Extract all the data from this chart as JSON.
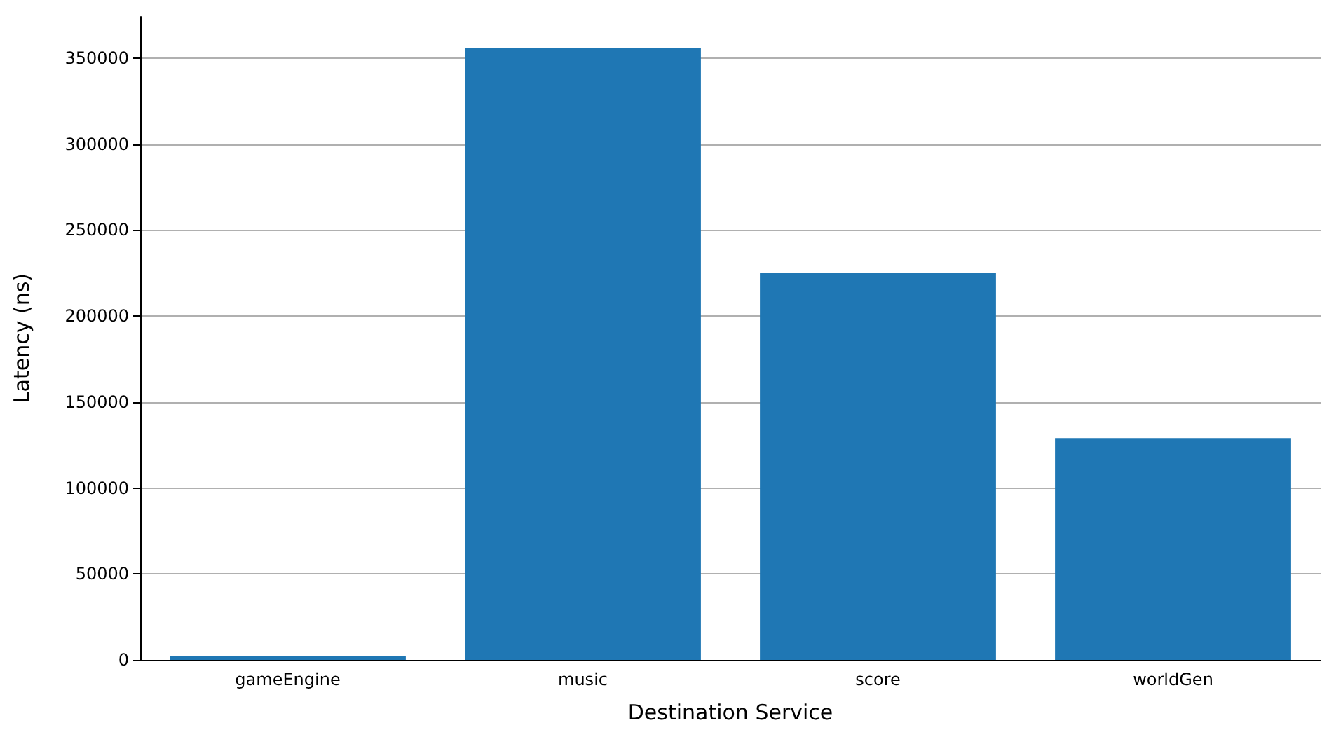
{
  "chart_data": {
    "type": "bar",
    "xlabel": "Destination Service",
    "ylabel": "Latency (ns)",
    "categories": [
      "gameEngine",
      "music",
      "score",
      "worldGen"
    ],
    "values": [
      2000,
      356000,
      225000,
      129000
    ],
    "color": "#1f77b4",
    "ylim": [
      0,
      374000
    ],
    "yticks": [
      0,
      50000,
      100000,
      150000,
      200000,
      250000,
      300000,
      350000
    ],
    "grid": "y"
  }
}
